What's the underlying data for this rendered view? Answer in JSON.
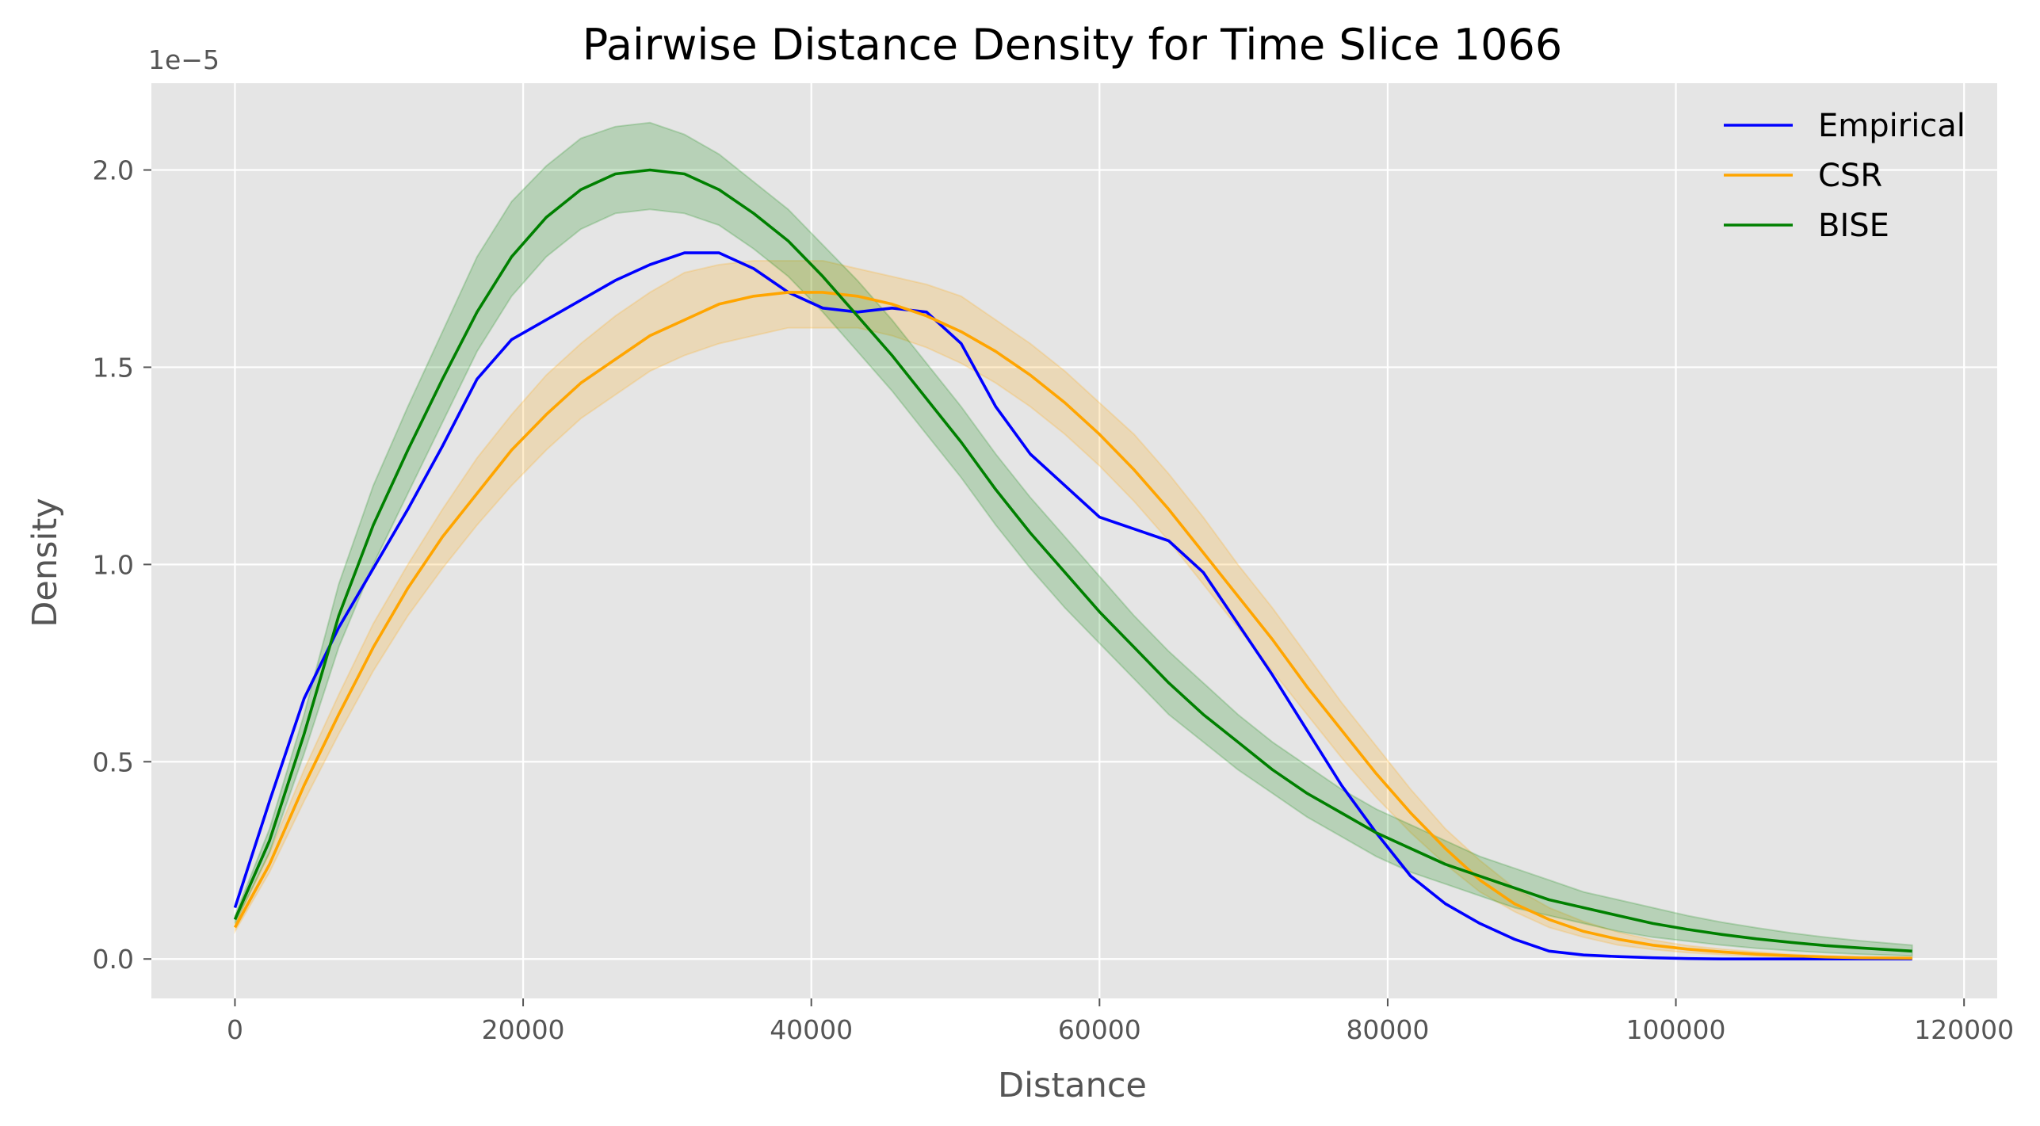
{
  "chart_data": {
    "type": "line",
    "title": "Pairwise Distance Density for Time Slice 1066",
    "xlabel": "Distance",
    "ylabel": "Density",
    "y_offset_text": "1e−5",
    "y_scale_factor": 1e-05,
    "xlim": [
      -5800,
      122300
    ],
    "ylim": [
      -0.1,
      2.22
    ],
    "x_ticks": [
      0,
      20000,
      40000,
      60000,
      80000,
      100000,
      120000
    ],
    "x_tick_labels": [
      "0",
      "20000",
      "40000",
      "60000",
      "80000",
      "100000",
      "120000"
    ],
    "y_ticks": [
      0.0,
      0.5,
      1.0,
      1.5,
      2.0
    ],
    "y_tick_labels": [
      "0.0",
      "0.5",
      "1.0",
      "1.5",
      "2.0"
    ],
    "grid": true,
    "legend_position": "top-right",
    "x": [
      0,
      2400,
      4800,
      7200,
      9600,
      12000,
      14400,
      16800,
      19200,
      21600,
      24000,
      26400,
      28800,
      31200,
      33600,
      36000,
      38400,
      40800,
      43200,
      45600,
      48000,
      50400,
      52800,
      55200,
      57600,
      60000,
      62400,
      64800,
      67200,
      69600,
      72000,
      74400,
      76800,
      79200,
      81600,
      84000,
      86400,
      88800,
      91200,
      93600,
      96000,
      98400,
      100800,
      103200,
      105600,
      108000,
      110400,
      112800,
      116400
    ],
    "series": [
      {
        "name": "Empirical",
        "color": "#0000ff",
        "values": [
          0.13,
          0.4,
          0.66,
          0.84,
          0.99,
          1.14,
          1.3,
          1.47,
          1.57,
          1.62,
          1.67,
          1.72,
          1.76,
          1.79,
          1.79,
          1.75,
          1.69,
          1.65,
          1.64,
          1.65,
          1.64,
          1.56,
          1.4,
          1.28,
          1.2,
          1.12,
          1.09,
          1.06,
          0.98,
          0.85,
          0.72,
          0.58,
          0.44,
          0.32,
          0.21,
          0.14,
          0.09,
          0.05,
          0.02,
          0.01,
          0.006,
          0.003,
          0.001,
          0.0,
          0.0,
          0.0,
          0.0,
          0.0,
          0.0
        ]
      },
      {
        "name": "CSR",
        "color": "#ffa500",
        "values": [
          0.08,
          0.24,
          0.44,
          0.62,
          0.79,
          0.94,
          1.07,
          1.18,
          1.29,
          1.38,
          1.46,
          1.52,
          1.58,
          1.62,
          1.66,
          1.68,
          1.69,
          1.69,
          1.68,
          1.66,
          1.63,
          1.59,
          1.54,
          1.48,
          1.41,
          1.33,
          1.24,
          1.14,
          1.03,
          0.92,
          0.81,
          0.69,
          0.58,
          0.47,
          0.37,
          0.28,
          0.2,
          0.14,
          0.1,
          0.07,
          0.05,
          0.035,
          0.025,
          0.018,
          0.012,
          0.008,
          0.005,
          0.003,
          0.002
        ],
        "band_lower": [
          0.07,
          0.22,
          0.4,
          0.57,
          0.73,
          0.87,
          0.99,
          1.1,
          1.2,
          1.29,
          1.37,
          1.43,
          1.49,
          1.53,
          1.56,
          1.58,
          1.6,
          1.6,
          1.6,
          1.58,
          1.55,
          1.51,
          1.46,
          1.4,
          1.33,
          1.25,
          1.16,
          1.06,
          0.95,
          0.84,
          0.73,
          0.62,
          0.51,
          0.41,
          0.32,
          0.24,
          0.17,
          0.12,
          0.08,
          0.055,
          0.035,
          0.024,
          0.016,
          0.011,
          0.007,
          0.004,
          0.002,
          0.001,
          0.0
        ],
        "band_upper": [
          0.09,
          0.27,
          0.48,
          0.67,
          0.85,
          1.0,
          1.14,
          1.27,
          1.38,
          1.48,
          1.56,
          1.63,
          1.69,
          1.74,
          1.76,
          1.77,
          1.77,
          1.77,
          1.75,
          1.73,
          1.71,
          1.68,
          1.62,
          1.56,
          1.49,
          1.41,
          1.33,
          1.23,
          1.12,
          1.0,
          0.89,
          0.77,
          0.65,
          0.54,
          0.43,
          0.33,
          0.25,
          0.18,
          0.13,
          0.095,
          0.068,
          0.048,
          0.034,
          0.025,
          0.018,
          0.012,
          0.008,
          0.005,
          0.004
        ]
      },
      {
        "name": "BISE",
        "color": "#008000",
        "values": [
          0.1,
          0.3,
          0.57,
          0.87,
          1.1,
          1.29,
          1.47,
          1.64,
          1.78,
          1.88,
          1.95,
          1.99,
          2.0,
          1.99,
          1.95,
          1.89,
          1.82,
          1.73,
          1.63,
          1.53,
          1.42,
          1.31,
          1.19,
          1.08,
          0.98,
          0.88,
          0.79,
          0.7,
          0.62,
          0.55,
          0.48,
          0.42,
          0.37,
          0.32,
          0.28,
          0.24,
          0.21,
          0.18,
          0.15,
          0.13,
          0.11,
          0.09,
          0.075,
          0.062,
          0.051,
          0.042,
          0.034,
          0.028,
          0.02
        ],
        "band_lower": [
          0.09,
          0.27,
          0.52,
          0.79,
          1.0,
          1.18,
          1.36,
          1.54,
          1.68,
          1.78,
          1.85,
          1.89,
          1.9,
          1.89,
          1.86,
          1.8,
          1.73,
          1.64,
          1.54,
          1.44,
          1.33,
          1.22,
          1.1,
          0.99,
          0.89,
          0.8,
          0.71,
          0.62,
          0.55,
          0.48,
          0.42,
          0.36,
          0.31,
          0.26,
          0.22,
          0.19,
          0.16,
          0.13,
          0.11,
          0.09,
          0.07,
          0.055,
          0.045,
          0.035,
          0.027,
          0.021,
          0.016,
          0.012,
          0.008
        ],
        "band_upper": [
          0.11,
          0.33,
          0.62,
          0.95,
          1.2,
          1.4,
          1.59,
          1.78,
          1.92,
          2.01,
          2.08,
          2.11,
          2.12,
          2.09,
          2.04,
          1.97,
          1.9,
          1.81,
          1.72,
          1.62,
          1.51,
          1.4,
          1.28,
          1.17,
          1.07,
          0.97,
          0.87,
          0.78,
          0.7,
          0.62,
          0.55,
          0.49,
          0.43,
          0.38,
          0.34,
          0.3,
          0.26,
          0.23,
          0.2,
          0.17,
          0.15,
          0.13,
          0.11,
          0.093,
          0.079,
          0.066,
          0.055,
          0.046,
          0.035
        ]
      }
    ]
  }
}
